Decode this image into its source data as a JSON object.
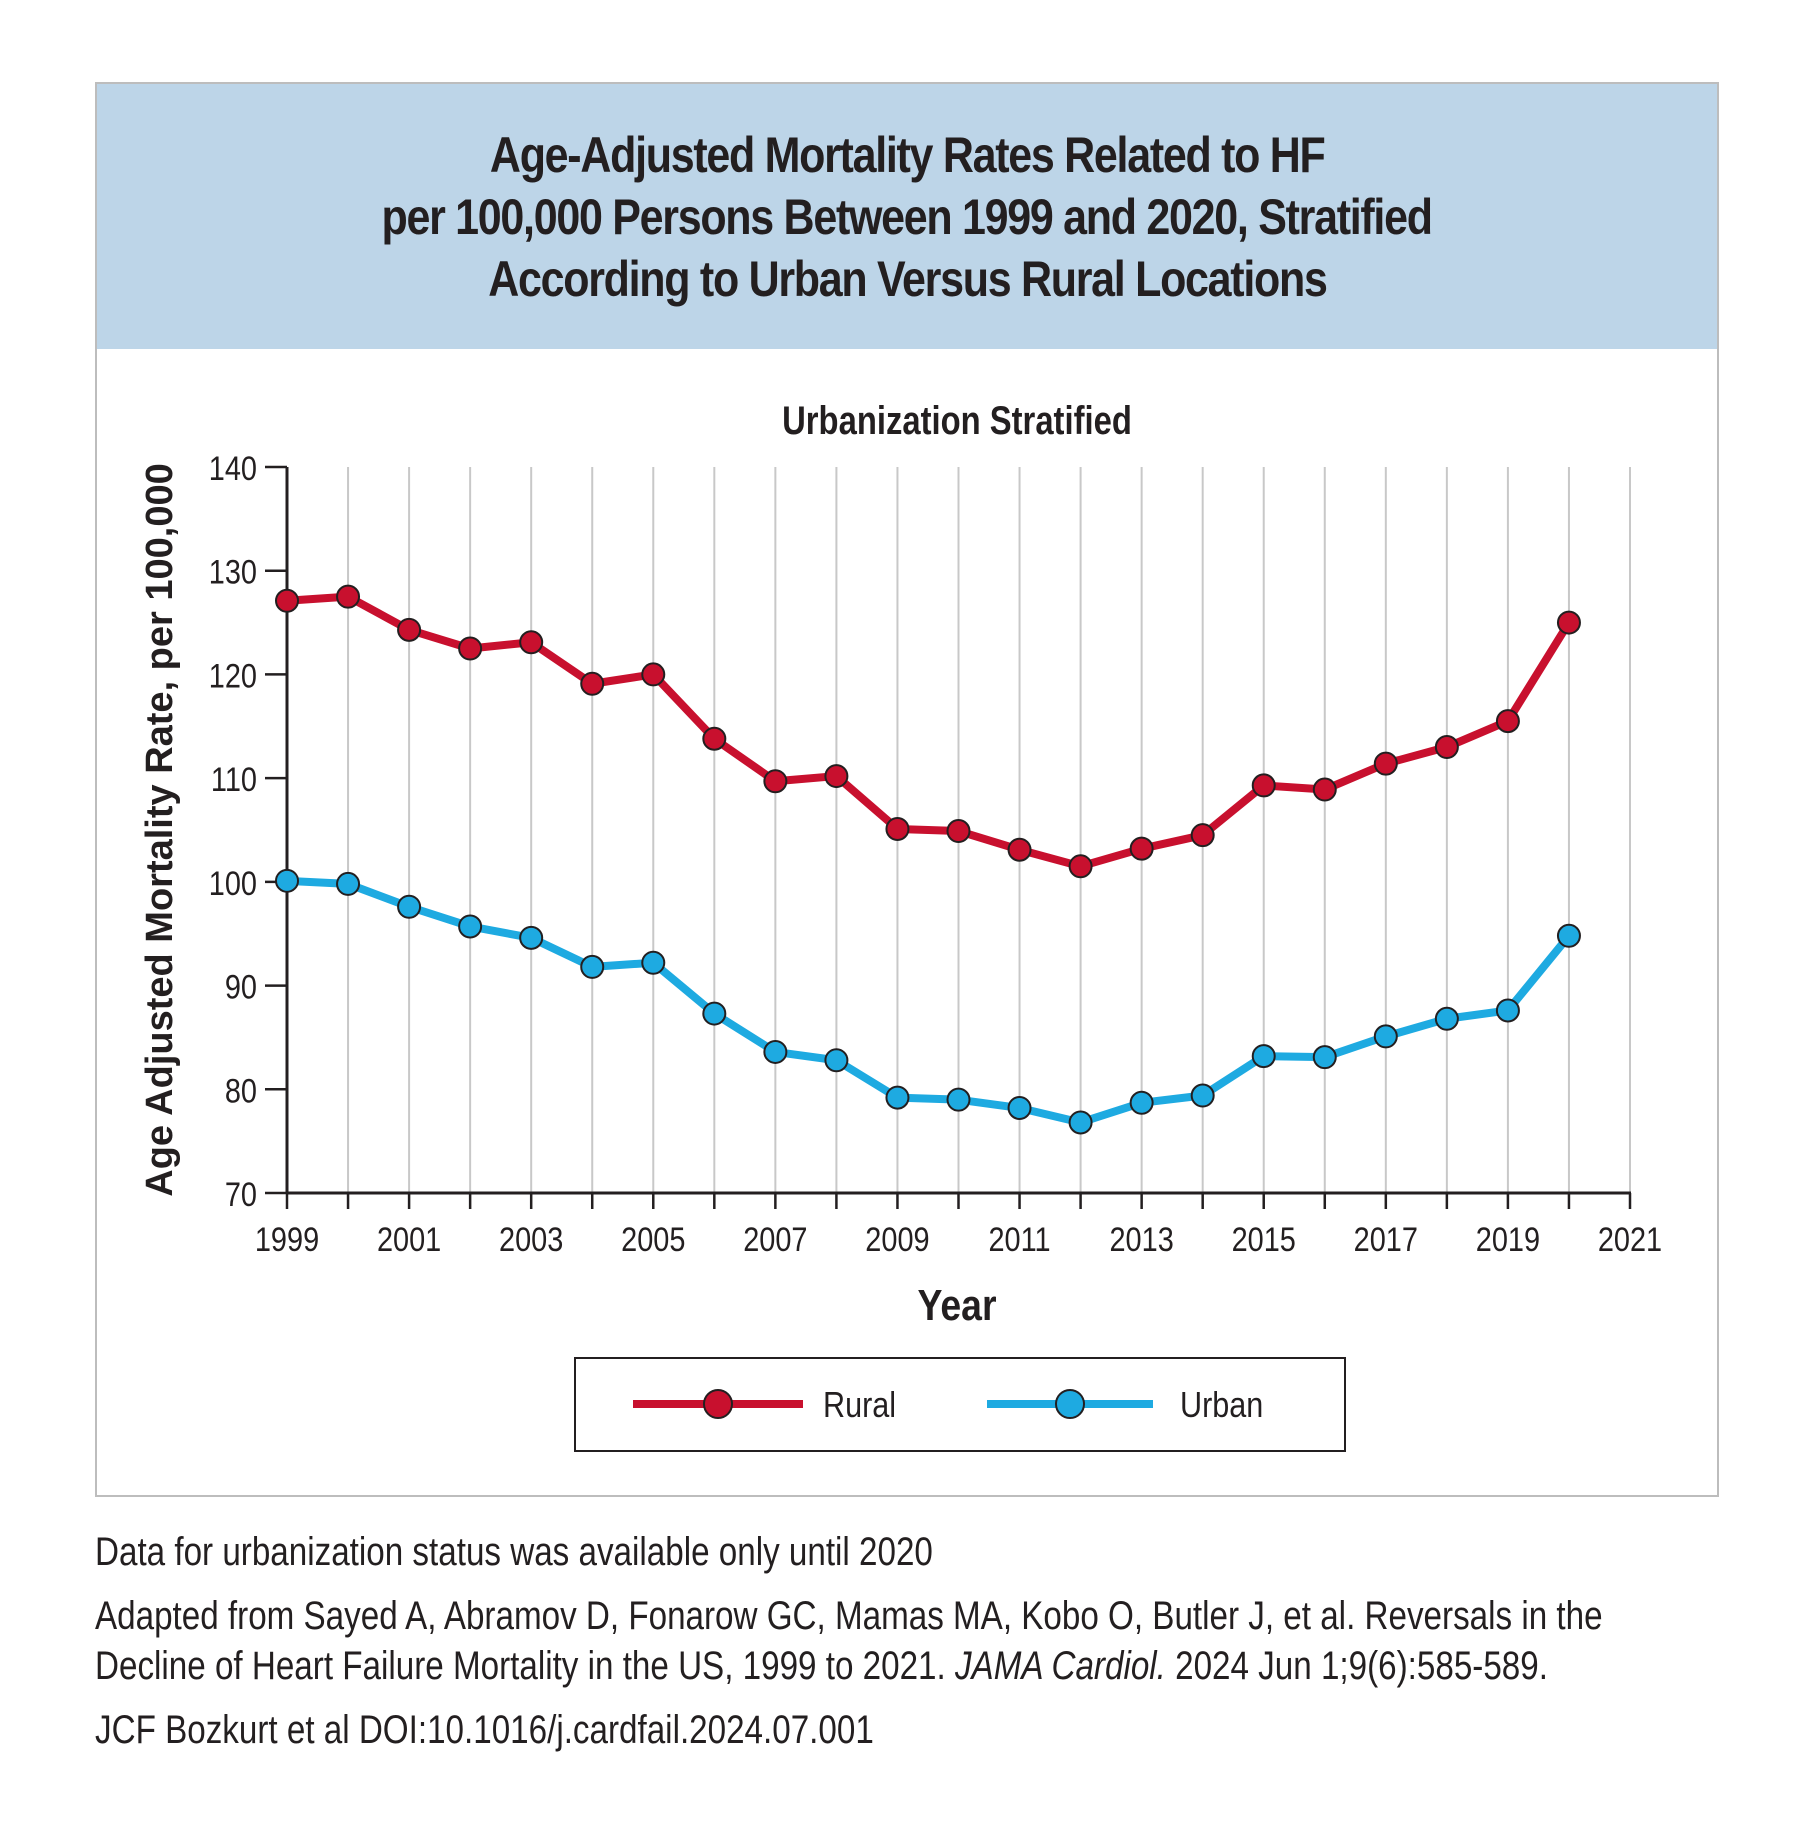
{
  "title": {
    "lines": [
      "Age-Adjusted Mortality Rates Related to HF",
      "per 100,000 Persons Between 1999 and 2020, Stratified",
      "According to Urban Versus Rural Locations"
    ]
  },
  "chart_data": {
    "type": "line",
    "title": "Urbanization Stratified",
    "xlabel": "Year",
    "ylabel": "Age Adjusted Mortality Rate, per 100,000",
    "xlim": [
      1999,
      2021
    ],
    "ylim": [
      70,
      140
    ],
    "x_ticks": [
      1999,
      2001,
      2003,
      2005,
      2007,
      2009,
      2011,
      2013,
      2015,
      2017,
      2019,
      2021
    ],
    "y_ticks": [
      70,
      80,
      90,
      100,
      110,
      120,
      130,
      140
    ],
    "grid": "vertical",
    "legend_position": "bottom-center",
    "x": [
      1999,
      2000,
      2001,
      2002,
      2003,
      2004,
      2005,
      2006,
      2007,
      2008,
      2009,
      2010,
      2011,
      2012,
      2013,
      2014,
      2015,
      2016,
      2017,
      2018,
      2019,
      2020
    ],
    "series": [
      {
        "name": "Rural",
        "color": "#c8102e",
        "values": [
          127.1,
          127.5,
          124.3,
          122.5,
          123.1,
          119.1,
          120.0,
          113.8,
          109.7,
          110.2,
          105.1,
          104.9,
          103.1,
          101.5,
          103.2,
          104.5,
          109.3,
          108.9,
          111.4,
          113.0,
          115.5,
          125.0
        ]
      },
      {
        "name": "Urban",
        "color": "#1eaae1",
        "values": [
          100.1,
          99.8,
          97.6,
          95.7,
          94.6,
          91.8,
          92.2,
          87.3,
          83.6,
          82.8,
          79.2,
          79.0,
          78.2,
          76.8,
          78.7,
          79.4,
          83.2,
          83.1,
          85.1,
          86.8,
          87.6,
          94.8
        ]
      }
    ]
  },
  "footnotes": {
    "availability": "Data for urbanization status was available only until 2020",
    "source_line1": "Adapted from Sayed A, Abramov D, Fonarow GC, Mamas MA, Kobo O, Butler J, et al. Reversals in the",
    "source_line2_prefix": "Decline of Heart Failure Mortality in the US, 1999 to 2021. ",
    "source_line2_journal": "JAMA Cardiol.",
    "source_line2_suffix": " 2024 Jun 1;9(6):585-589.",
    "doi": "JCF Bozkurt et al  DOI:10.1016/j.cardfail.2024.07.001"
  }
}
